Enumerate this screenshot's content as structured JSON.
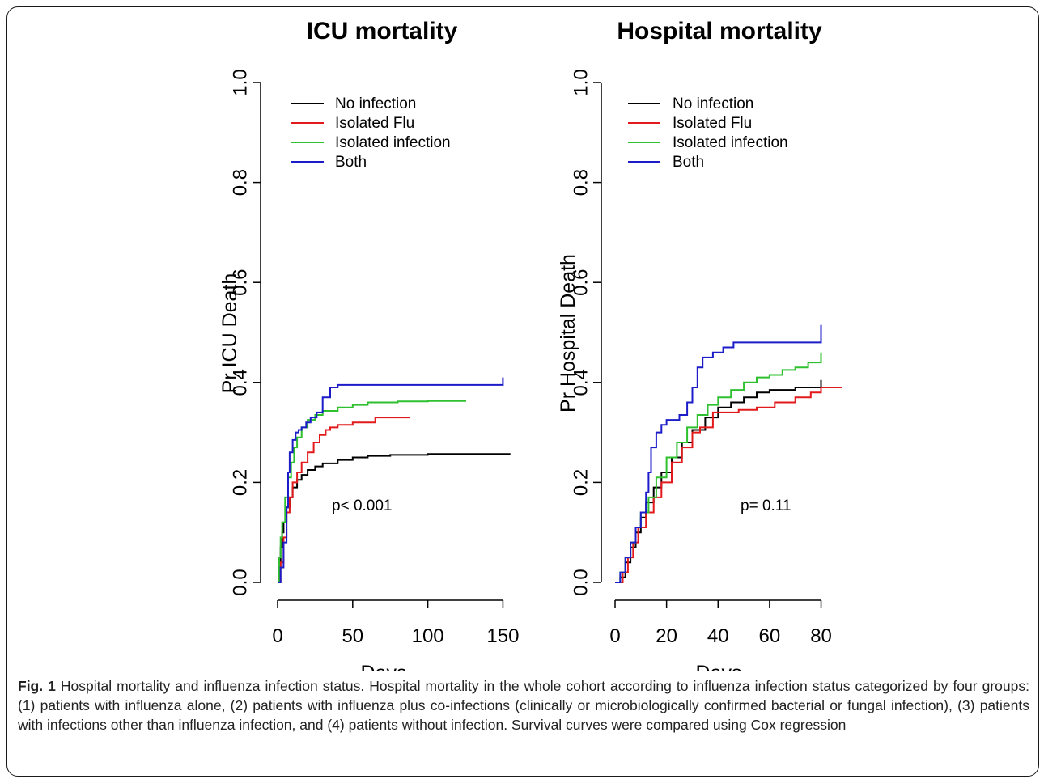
{
  "caption": {
    "label": "Fig. 1",
    "text": "Hospital mortality and influenza infection status. Hospital mortality in the whole cohort according to influenza infection status categorized by four groups: (1) patients with influenza alone, (2) patients with influenza plus co-infections (clinically or microbiologically confirmed bacterial or fungal infection), (3) patients with infections other than influenza infection, and (4) patients without infection. Survival curves were compared using Cox regression"
  },
  "chart_data": [
    {
      "type": "line",
      "step": true,
      "title": "ICU mortality",
      "xlabel": "Days",
      "ylabel": "Pr ICU Death",
      "xlim": [
        0,
        160
      ],
      "ylim": [
        0,
        1.0
      ],
      "x_ticks": [
        0,
        50,
        100,
        150
      ],
      "y_ticks": [
        "0.0",
        "0.2",
        "0.4",
        "0.6",
        "0.8",
        "1.0"
      ],
      "y_tick_values": [
        0,
        0.2,
        0.4,
        0.6,
        0.8,
        1.0
      ],
      "legend_position": "top-left",
      "annotation": "p< 0.001",
      "annotation_pos": {
        "x": 48,
        "y": 0.155
      },
      "series": [
        {
          "name": "No infection",
          "color": "#000000",
          "points": [
            [
              0,
              0
            ],
            [
              1,
              0.03
            ],
            [
              2,
              0.07
            ],
            [
              3,
              0.1
            ],
            [
              4,
              0.12
            ],
            [
              6,
              0.15
            ],
            [
              8,
              0.17
            ],
            [
              10,
              0.19
            ],
            [
              13,
              0.205
            ],
            [
              16,
              0.215
            ],
            [
              20,
              0.225
            ],
            [
              25,
              0.232
            ],
            [
              30,
              0.238
            ],
            [
              40,
              0.245
            ],
            [
              50,
              0.25
            ],
            [
              60,
              0.253
            ],
            [
              75,
              0.255
            ],
            [
              100,
              0.257
            ],
            [
              155,
              0.257
            ]
          ]
        },
        {
          "name": "Isolated Flu",
          "color": "#e31a1c",
          "points": [
            [
              0,
              0
            ],
            [
              2,
              0.04
            ],
            [
              4,
              0.09
            ],
            [
              6,
              0.14
            ],
            [
              8,
              0.17
            ],
            [
              10,
              0.2
            ],
            [
              13,
              0.22
            ],
            [
              16,
              0.24
            ],
            [
              20,
              0.26
            ],
            [
              24,
              0.28
            ],
            [
              28,
              0.295
            ],
            [
              32,
              0.305
            ],
            [
              35,
              0.31
            ],
            [
              40,
              0.315
            ],
            [
              50,
              0.32
            ],
            [
              65,
              0.33
            ],
            [
              88,
              0.33
            ]
          ]
        },
        {
          "name": "Isolated infection",
          "color": "#2ec02e",
          "points": [
            [
              0,
              0
            ],
            [
              1,
              0.05
            ],
            [
              2,
              0.09
            ],
            [
              3,
              0.12
            ],
            [
              5,
              0.17
            ],
            [
              7,
              0.21
            ],
            [
              9,
              0.24
            ],
            [
              11,
              0.27
            ],
            [
              13,
              0.29
            ],
            [
              16,
              0.31
            ],
            [
              20,
              0.325
            ],
            [
              25,
              0.335
            ],
            [
              30,
              0.343
            ],
            [
              40,
              0.35
            ],
            [
              50,
              0.355
            ],
            [
              60,
              0.36
            ],
            [
              80,
              0.362
            ],
            [
              100,
              0.363
            ],
            [
              125,
              0.364
            ]
          ]
        },
        {
          "name": "Both",
          "color": "#1c1cc8",
          "points": [
            [
              0,
              0
            ],
            [
              2,
              0.03
            ],
            [
              4,
              0.08
            ],
            [
              6,
              0.15
            ],
            [
              7,
              0.22
            ],
            [
              8,
              0.26
            ],
            [
              10,
              0.285
            ],
            [
              12,
              0.3
            ],
            [
              14,
              0.305
            ],
            [
              16,
              0.31
            ],
            [
              19,
              0.32
            ],
            [
              22,
              0.33
            ],
            [
              26,
              0.34
            ],
            [
              30,
              0.37
            ],
            [
              35,
              0.39
            ],
            [
              40,
              0.395
            ],
            [
              100,
              0.395
            ],
            [
              150,
              0.395
            ],
            [
              150,
              0.41
            ]
          ]
        }
      ]
    },
    {
      "type": "line",
      "step": true,
      "title": "Hospital mortality",
      "xlabel": "Days",
      "ylabel": "Pr Hospital Death",
      "xlim": [
        0,
        88
      ],
      "ylim": [
        0,
        1.0
      ],
      "x_ticks": [
        0,
        20,
        40,
        60,
        80
      ],
      "y_ticks": [
        "0.0",
        "0.2",
        "0.4",
        "0.6",
        "0.8",
        "1.0"
      ],
      "y_tick_values": [
        0,
        0.2,
        0.4,
        0.6,
        0.8,
        1.0
      ],
      "legend_position": "top-left",
      "annotation": "p= 0.11",
      "annotation_pos": {
        "x": 52,
        "y": 0.155
      },
      "series": [
        {
          "name": "No infection",
          "color": "#000000",
          "points": [
            [
              0,
              0
            ],
            [
              2,
              0.01
            ],
            [
              4,
              0.04
            ],
            [
              6,
              0.07
            ],
            [
              8,
              0.1
            ],
            [
              10,
              0.13
            ],
            [
              12,
              0.16
            ],
            [
              15,
              0.19
            ],
            [
              18,
              0.22
            ],
            [
              22,
              0.25
            ],
            [
              26,
              0.28
            ],
            [
              30,
              0.305
            ],
            [
              35,
              0.33
            ],
            [
              40,
              0.35
            ],
            [
              45,
              0.36
            ],
            [
              50,
              0.37
            ],
            [
              55,
              0.38
            ],
            [
              60,
              0.385
            ],
            [
              70,
              0.39
            ],
            [
              80,
              0.4
            ],
            [
              80,
              0.405
            ]
          ]
        },
        {
          "name": "Isolated Flu",
          "color": "#e31a1c",
          "points": [
            [
              0,
              0
            ],
            [
              3,
              0.02
            ],
            [
              5,
              0.05
            ],
            [
              7,
              0.08
            ],
            [
              9,
              0.11
            ],
            [
              12,
              0.14
            ],
            [
              15,
              0.17
            ],
            [
              18,
              0.2
            ],
            [
              22,
              0.24
            ],
            [
              26,
              0.27
            ],
            [
              30,
              0.3
            ],
            [
              33,
              0.31
            ],
            [
              38,
              0.34
            ],
            [
              42,
              0.34
            ],
            [
              48,
              0.345
            ],
            [
              55,
              0.35
            ],
            [
              62,
              0.36
            ],
            [
              70,
              0.37
            ],
            [
              76,
              0.38
            ],
            [
              80,
              0.39
            ],
            [
              88,
              0.39
            ]
          ]
        },
        {
          "name": "Isolated infection",
          "color": "#2ec02e",
          "points": [
            [
              0,
              0
            ],
            [
              2,
              0.02
            ],
            [
              4,
              0.05
            ],
            [
              6,
              0.08
            ],
            [
              8,
              0.11
            ],
            [
              10,
              0.14
            ],
            [
              13,
              0.17
            ],
            [
              16,
              0.21
            ],
            [
              20,
              0.25
            ],
            [
              24,
              0.28
            ],
            [
              28,
              0.31
            ],
            [
              32,
              0.335
            ],
            [
              36,
              0.355
            ],
            [
              40,
              0.37
            ],
            [
              45,
              0.385
            ],
            [
              50,
              0.4
            ],
            [
              55,
              0.41
            ],
            [
              60,
              0.415
            ],
            [
              65,
              0.425
            ],
            [
              70,
              0.43
            ],
            [
              75,
              0.44
            ],
            [
              80,
              0.445
            ],
            [
              80,
              0.46
            ]
          ]
        },
        {
          "name": "Both",
          "color": "#1c1cc8",
          "points": [
            [
              0,
              0
            ],
            [
              2,
              0.02
            ],
            [
              4,
              0.05
            ],
            [
              6,
              0.08
            ],
            [
              8,
              0.11
            ],
            [
              10,
              0.14
            ],
            [
              12,
              0.18
            ],
            [
              13,
              0.22
            ],
            [
              14,
              0.27
            ],
            [
              16,
              0.3
            ],
            [
              18,
              0.315
            ],
            [
              20,
              0.325
            ],
            [
              25,
              0.335
            ],
            [
              28,
              0.36
            ],
            [
              30,
              0.39
            ],
            [
              32,
              0.43
            ],
            [
              34,
              0.45
            ],
            [
              38,
              0.46
            ],
            [
              42,
              0.47
            ],
            [
              46,
              0.48
            ],
            [
              60,
              0.48
            ],
            [
              80,
              0.48
            ],
            [
              80,
              0.515
            ]
          ]
        }
      ]
    }
  ]
}
